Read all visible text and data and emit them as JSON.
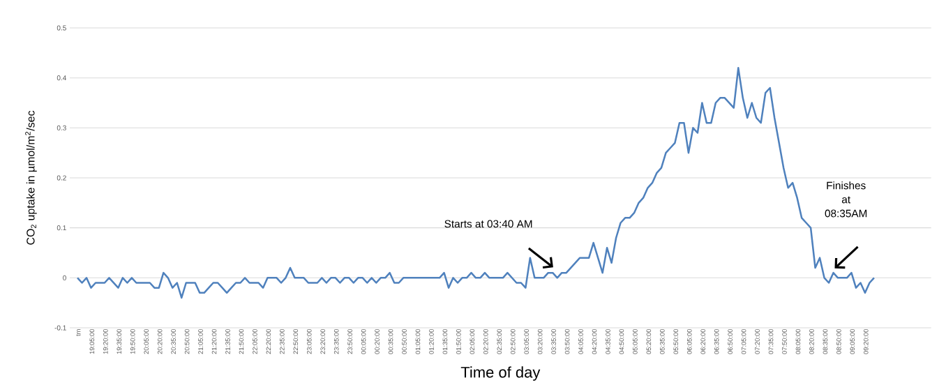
{
  "chart_data": {
    "type": "line",
    "xlabel": "Time of day",
    "ylabel": "CO$_{2}$ uptake in µmol/m$^{2}$/sec",
    "categories": [
      "tm",
      null,
      null,
      "19:05:00",
      null,
      null,
      "19:20:00",
      null,
      null,
      "19:35:00",
      null,
      null,
      "19:50:00",
      null,
      null,
      "20:05:00",
      null,
      null,
      "20:20:00",
      null,
      null,
      "20:35:00",
      null,
      null,
      "20:50:00",
      null,
      null,
      "21:05:00",
      null,
      null,
      "21:20:00",
      null,
      null,
      "21:35:00",
      null,
      null,
      "21:50:00",
      null,
      null,
      "22:05:00",
      null,
      null,
      "22:20:00",
      null,
      null,
      "22:35:00",
      null,
      null,
      "22:50:00",
      null,
      null,
      "23:05:00",
      null,
      null,
      "23:20:00",
      null,
      null,
      "23:35:00",
      null,
      null,
      "23:50:00",
      null,
      null,
      "00:05:00",
      null,
      null,
      "00:20:00",
      null,
      null,
      "00:35:00",
      null,
      null,
      "00:50:00",
      null,
      null,
      "01:05:00",
      null,
      null,
      "01:20:00",
      null,
      null,
      "01:35:00",
      null,
      null,
      "01:50:00",
      null,
      null,
      "02:05:00",
      null,
      null,
      "02:20:00",
      null,
      null,
      "02:35:00",
      null,
      null,
      "02:50:00",
      null,
      null,
      "03:05:00",
      null,
      null,
      "03:20:00",
      null,
      null,
      "03:35:00",
      null,
      null,
      "03:50:00",
      null,
      null,
      "04:05:00",
      null,
      null,
      "04:20:00",
      null,
      null,
      "04:35:00",
      null,
      null,
      "04:50:00",
      null,
      null,
      "05:05:00",
      null,
      null,
      "05:20:00",
      null,
      null,
      "05:35:00",
      null,
      null,
      "05:50:00",
      null,
      null,
      "06:05:00",
      null,
      null,
      "06:20:00",
      null,
      null,
      "06:35:00",
      null,
      null,
      "06:50:00",
      null,
      null,
      "07:05:00",
      null,
      null,
      "07:20:00",
      null,
      null,
      "07:35:00",
      null,
      null,
      "07:50:00",
      null,
      null,
      "08:05:00",
      null,
      null,
      "08:20:00",
      null,
      null,
      "08:35:00",
      null,
      null,
      "08:50:00",
      null,
      null,
      "09:05:00",
      null,
      null,
      "09:20:00",
      null,
      null
    ],
    "values": [
      0,
      -0.01,
      0,
      -0.02,
      -0.01,
      -0.01,
      -0.01,
      0,
      -0.01,
      -0.02,
      0,
      -0.01,
      0,
      -0.01,
      -0.01,
      -0.01,
      -0.01,
      -0.02,
      -0.02,
      0.01,
      0,
      -0.02,
      -0.01,
      -0.04,
      -0.01,
      -0.01,
      -0.01,
      -0.03,
      -0.03,
      -0.02,
      -0.01,
      -0.01,
      -0.02,
      -0.03,
      -0.02,
      -0.01,
      -0.01,
      0,
      -0.01,
      -0.01,
      -0.01,
      -0.02,
      0,
      0,
      0,
      -0.01,
      0,
      0.02,
      0,
      0,
      0,
      -0.01,
      -0.01,
      -0.01,
      0,
      -0.01,
      0,
      0,
      -0.01,
      0,
      0,
      -0.01,
      0,
      0,
      -0.01,
      0,
      -0.01,
      0,
      0,
      0.01,
      -0.01,
      -0.01,
      0,
      0,
      0,
      0,
      0,
      0,
      0,
      0,
      0,
      0.01,
      -0.02,
      0,
      -0.01,
      0,
      0,
      0.01,
      0,
      0,
      0.01,
      0,
      0,
      0,
      0,
      0.01,
      0,
      -0.01,
      -0.01,
      -0.02,
      0.04,
      0,
      0,
      0,
      0.01,
      0.01,
      0,
      0.01,
      0.01,
      0.02,
      0.03,
      0.04,
      0.04,
      0.04,
      0.07,
      0.04,
      0.01,
      0.06,
      0.03,
      0.08,
      0.11,
      0.12,
      0.12,
      0.13,
      0.15,
      0.16,
      0.18,
      0.19,
      0.21,
      0.22,
      0.25,
      0.26,
      0.27,
      0.31,
      0.31,
      0.25,
      0.3,
      0.29,
      0.35,
      0.31,
      0.31,
      0.35,
      0.36,
      0.36,
      0.35,
      0.34,
      0.42,
      0.36,
      0.32,
      0.35,
      0.32,
      0.31,
      0.37,
      0.38,
      0.32,
      0.27,
      0.22,
      0.18,
      0.19,
      0.16,
      0.12,
      0.11,
      0.1,
      0.02,
      0.04,
      0,
      -0.01,
      0.01,
      0,
      0,
      0,
      0.01,
      -0.02,
      -0.01,
      -0.03,
      -0.01,
      0
    ],
    "color": "#4f81bd",
    "ylim": [
      -0.1,
      0.5
    ],
    "yticks": [
      -0.1,
      0,
      0.1,
      0.2,
      0.3,
      0.4,
      0.5
    ],
    "grid": "y",
    "annotations": [
      "Starts at 03:40 AM",
      "Finishes at 08:35AM"
    ]
  }
}
